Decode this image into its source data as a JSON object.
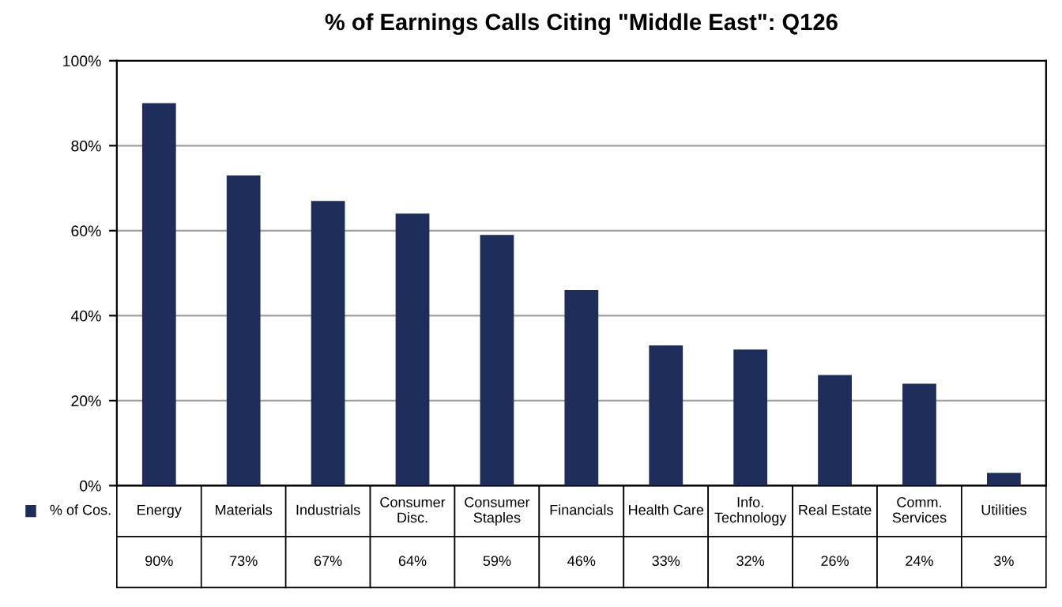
{
  "chart_data": {
    "type": "bar",
    "title": "% of Earnings Calls Citing \"Middle East\": Q126",
    "categories": [
      "Energy",
      "Materials",
      "Industrials",
      "Consumer\nDisc.",
      "Consumer\nStaples",
      "Financials",
      "Health Care",
      "Info.\nTechnology",
      "Real Estate",
      "Comm.\nServices",
      "Utilities"
    ],
    "series": [
      {
        "name": "% of Cos.",
        "color": "#1f2d5a",
        "values": [
          90,
          73,
          67,
          64,
          59,
          46,
          33,
          32,
          26,
          24,
          3
        ],
        "value_labels": [
          "90%",
          "73%",
          "67%",
          "64%",
          "59%",
          "46%",
          "33%",
          "32%",
          "26%",
          "24%",
          "3%"
        ]
      }
    ],
    "ylim": [
      0,
      100
    ],
    "yticks": [
      {
        "value": 0,
        "label": "0%"
      },
      {
        "value": 20,
        "label": "20%"
      },
      {
        "value": 40,
        "label": "40%"
      },
      {
        "value": 60,
        "label": "60%"
      },
      {
        "value": 80,
        "label": "80%"
      },
      {
        "value": 100,
        "label": "100%"
      }
    ],
    "grid": "y",
    "legend": "bottom left"
  }
}
